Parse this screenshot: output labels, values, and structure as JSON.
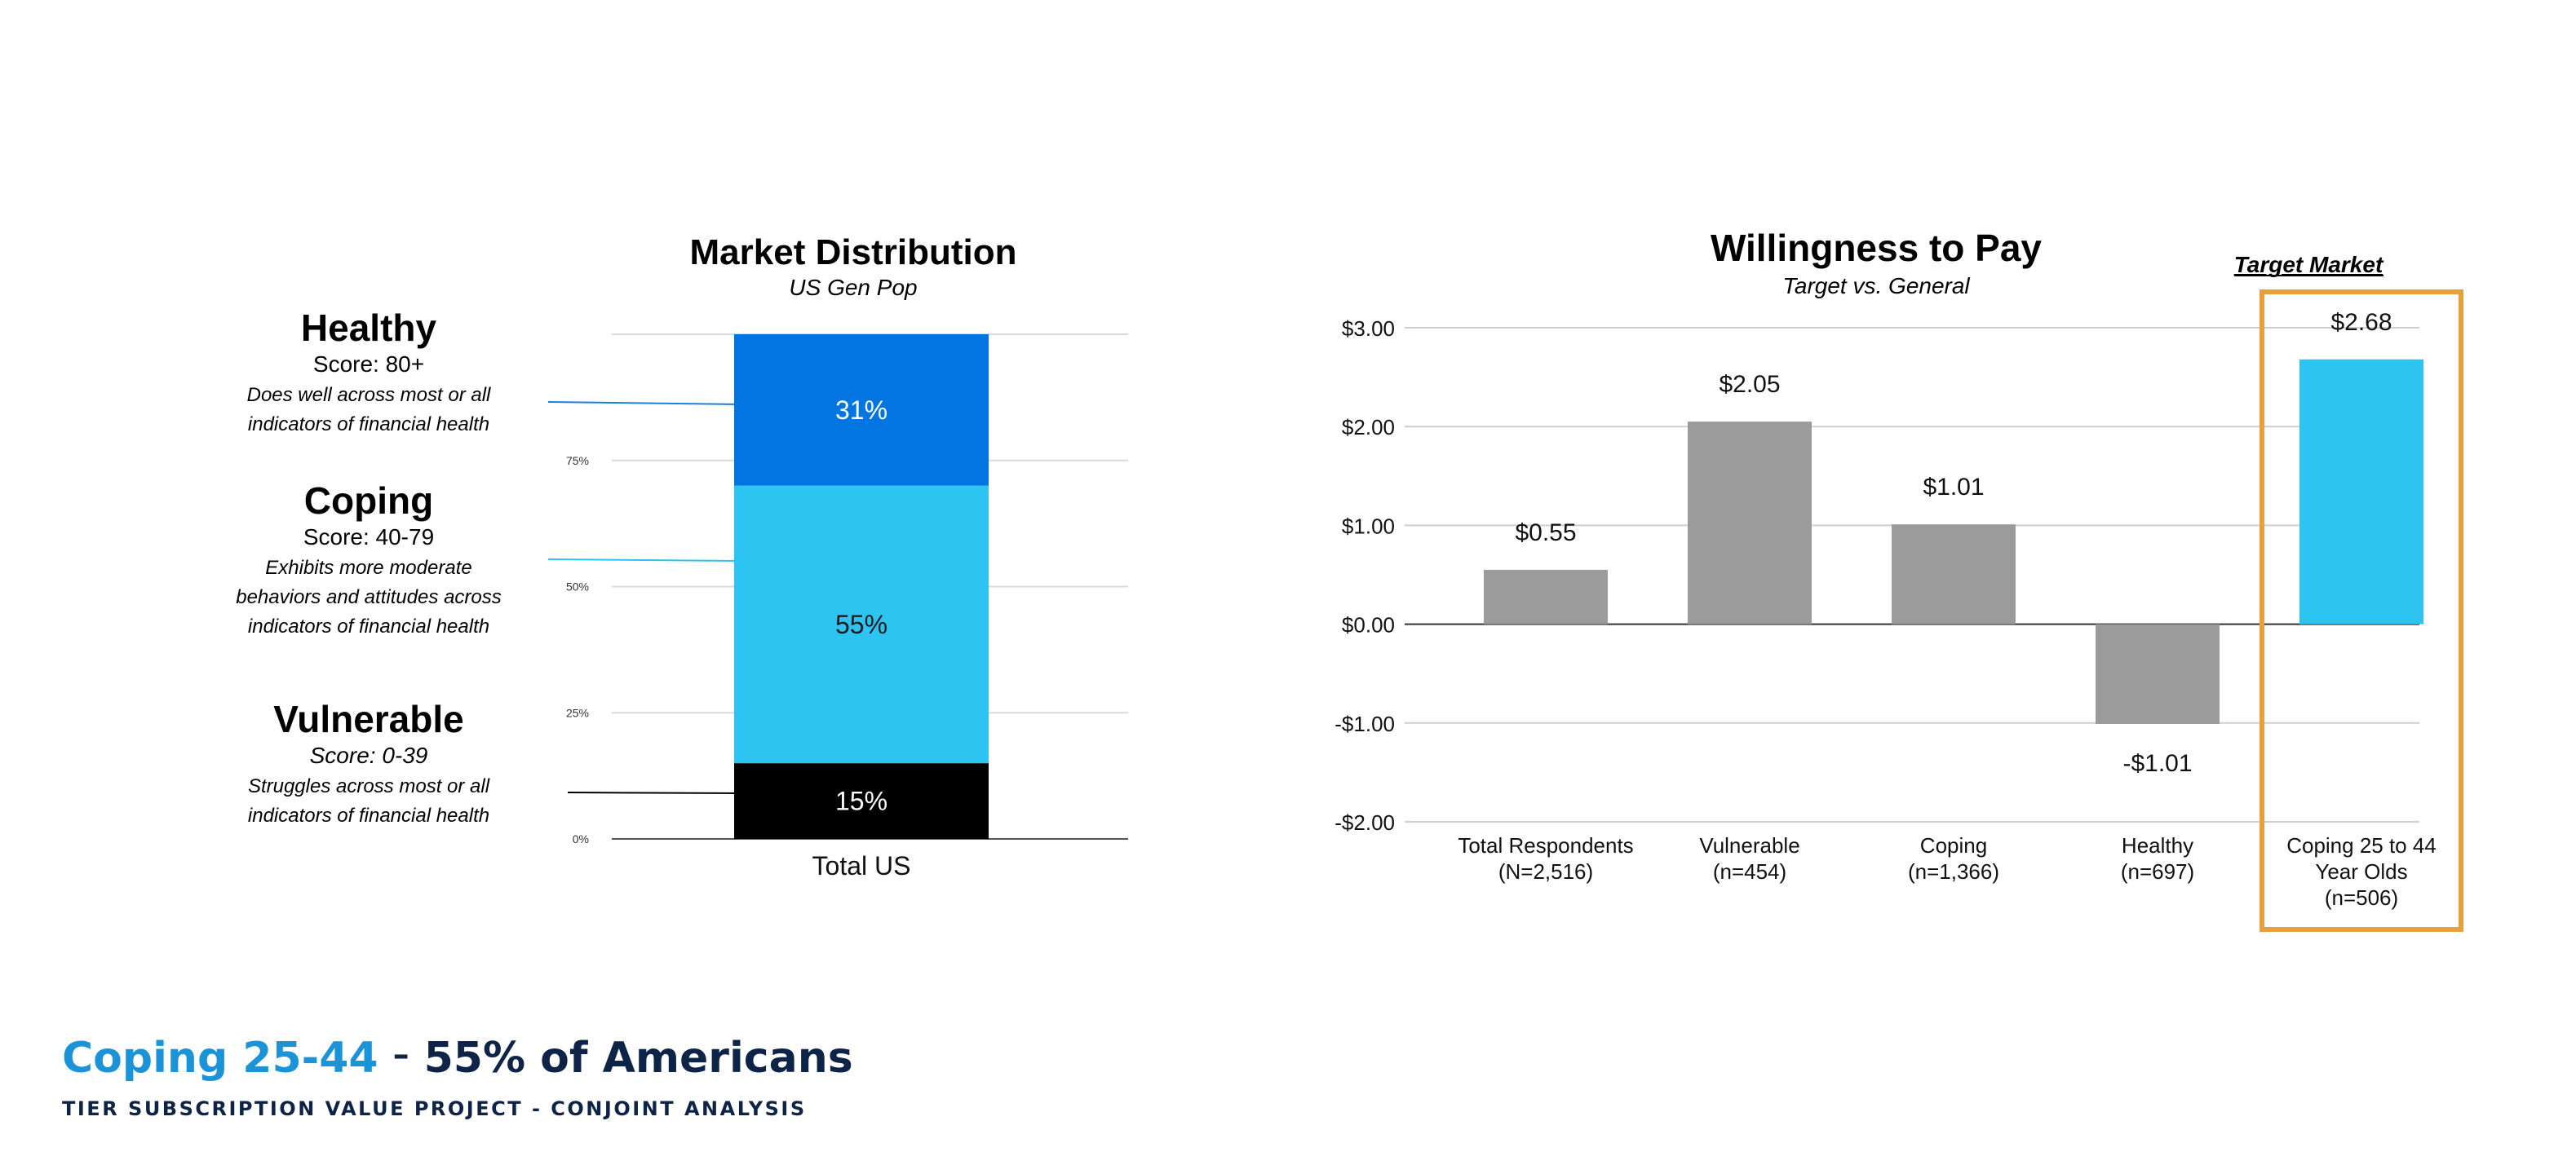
{
  "chart_data": [
    {
      "type": "bar",
      "stacked": true,
      "title": "Market Distribution",
      "subtitle": "US Gen Pop",
      "categories": [
        "Total US"
      ],
      "ylim": [
        0,
        100
      ],
      "yticks": [
        "0%",
        "25%",
        "50%",
        "75%"
      ],
      "grid": true,
      "series": [
        {
          "name": "Vulnerable",
          "values": [
            15
          ],
          "label": "15%",
          "color": "#000000",
          "label_color": "#ffffff"
        },
        {
          "name": "Coping",
          "values": [
            55
          ],
          "label": "55%",
          "color": "#2ec4f2",
          "label_color": "#1a1a1a"
        },
        {
          "name": "Healthy",
          "values": [
            31
          ],
          "label": "31%",
          "color": "#0275e1",
          "label_color": "#ffffff"
        }
      ]
    },
    {
      "type": "bar",
      "title": "Willingness to Pay",
      "subtitle": "Target vs. General",
      "annotation": "Target Market",
      "ylim": [
        -2,
        3
      ],
      "yticks": [
        -2,
        -1,
        0,
        1,
        2,
        3
      ],
      "ytick_labels": [
        "-$2.00",
        "-$1.00",
        "$0.00",
        "$1.00",
        "$2.00",
        "$3.00"
      ],
      "grid": true,
      "categories": [
        [
          "Total Respondents",
          "(N=2,516)"
        ],
        [
          "Vulnerable",
          "(n=454)"
        ],
        [
          "Coping",
          "(n=1,366)"
        ],
        [
          "Healthy",
          "(n=697)"
        ],
        [
          "Coping 25 to 44",
          "Year Olds",
          "(n=506)"
        ]
      ],
      "values": [
        0.55,
        2.05,
        1.01,
        -1.01,
        2.68
      ],
      "value_labels": [
        "$0.55",
        "$2.05",
        "$1.01",
        "-$1.01",
        "$2.68"
      ],
      "colors": [
        "#9b9b9b",
        "#9b9b9b",
        "#9b9b9b",
        "#9b9b9b",
        "#2ec4f2"
      ],
      "highlight_index": 4,
      "highlight_color": "#e8a03c"
    }
  ],
  "segments": [
    {
      "name": "Healthy",
      "score": "Score: 80+",
      "score_italic": false,
      "description": [
        "Does well across most or all",
        "indicators of financial health"
      ]
    },
    {
      "name": "Coping",
      "score": "Score: 40-79",
      "score_italic": false,
      "description": [
        "Exhibits more moderate",
        "behaviors and attitudes across",
        "indicators of financial health"
      ]
    },
    {
      "name": "Vulnerable",
      "score": "Score: 0-39",
      "score_italic": true,
      "description": [
        "Struggles across most or all",
        "indicators of financial health"
      ]
    }
  ],
  "footer": {
    "accent": "Coping 25-44",
    "dash": "–",
    "main": "55% of Americans",
    "subtitle": "TIER SUBSCRIPTION VALUE PROJECT - CONJOINT ANALYSIS"
  }
}
